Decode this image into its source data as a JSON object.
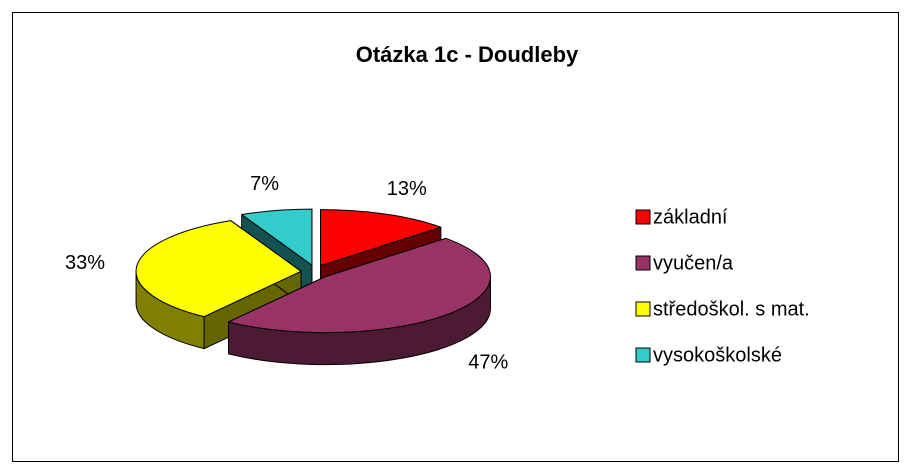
{
  "chart_data": {
    "type": "pie",
    "title": "Otázka 1c - Doudleby",
    "categories": [
      "základní",
      "vyučen/a",
      "středoškol. s mat.",
      "vysokoškolské"
    ],
    "values": [
      13,
      47,
      33,
      7
    ],
    "value_labels": [
      "13%",
      "47%",
      "33%",
      "7%"
    ],
    "colors": [
      "#ff0000",
      "#993366",
      "#ffff00",
      "#33cccc"
    ],
    "legend": "right"
  }
}
